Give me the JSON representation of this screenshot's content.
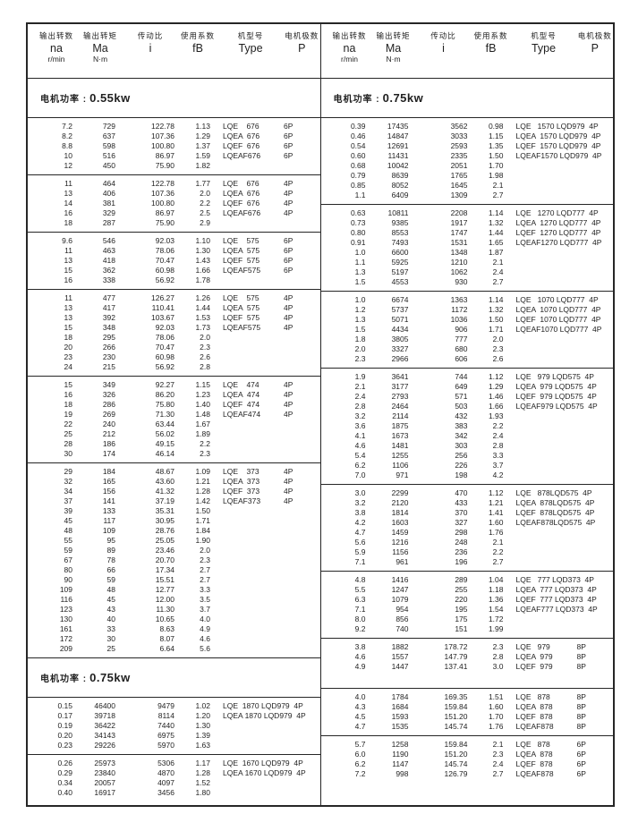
{
  "colors": {
    "ink": "#1f1f1f",
    "border": "#262626",
    "background": "#ffffff"
  },
  "power_label_prefix": "电机功率 :",
  "header": {
    "columns": [
      {
        "zh": "输出转数",
        "sym": "na",
        "unit": "r/min"
      },
      {
        "zh": "输出转矩",
        "sym": "Ma",
        "unit": "N·m"
      },
      {
        "zh": "传动比",
        "sym": "i",
        "unit": ""
      },
      {
        "zh": "使用系数",
        "sym": "fB",
        "unit": ""
      },
      {
        "zh": "机型号",
        "sym": "Type",
        "unit": ""
      },
      {
        "zh": "电机极数",
        "sym": "P",
        "unit": ""
      }
    ]
  },
  "left_column": {
    "sections": [
      {
        "type": "power",
        "value": "0.55kw"
      },
      {
        "type": "block",
        "poles": "6P",
        "poles_inline": false,
        "models": [
          "LQE    676",
          "LQEA  676",
          "LQEF  676",
          "LQEAF676"
        ],
        "rows": [
          [
            "7.2",
            "729",
            "122.78",
            "1.13"
          ],
          [
            "8.2",
            "637",
            "107.36",
            "1.29"
          ],
          [
            "8.8",
            "598",
            "100.80",
            "1.37"
          ],
          [
            "10",
            "516",
            "86.97",
            "1.59"
          ],
          [
            "12",
            "450",
            "75.90",
            "1.82"
          ]
        ]
      },
      {
        "type": "block",
        "poles": "4P",
        "poles_inline": false,
        "models": [
          "LQE    676",
          "LQEA  676",
          "LQEF  676",
          "LQEAF676"
        ],
        "rows": [
          [
            "11",
            "464",
            "122.78",
            "1.77"
          ],
          [
            "13",
            "406",
            "107.36",
            "2.0"
          ],
          [
            "14",
            "381",
            "100.80",
            "2.2"
          ],
          [
            "16",
            "329",
            "86.97",
            "2.5"
          ],
          [
            "18",
            "287",
            "75.90",
            "2.9"
          ]
        ]
      },
      {
        "type": "block",
        "poles": "6P",
        "poles_inline": false,
        "models": [
          "LQE    575",
          "LQEA  575",
          "LQEF  575",
          "LQEAF575"
        ],
        "rows": [
          [
            "9.6",
            "546",
            "92.03",
            "1.10"
          ],
          [
            "11",
            "463",
            "78.06",
            "1.30"
          ],
          [
            "13",
            "418",
            "70.47",
            "1.43"
          ],
          [
            "15",
            "362",
            "60.98",
            "1.66"
          ],
          [
            "16",
            "338",
            "56.92",
            "1.78"
          ]
        ]
      },
      {
        "type": "block",
        "poles": "4P",
        "poles_inline": false,
        "models": [
          "LQE    575",
          "LQEA  575",
          "LQEF  575",
          "LQEAF575"
        ],
        "rows": [
          [
            "11",
            "477",
            "126.27",
            "1.26"
          ],
          [
            "13",
            "417",
            "110.41",
            "1.44"
          ],
          [
            "13",
            "392",
            "103.67",
            "1.53"
          ],
          [
            "15",
            "348",
            "92.03",
            "1.73"
          ],
          [
            "18",
            "295",
            "78.06",
            "2.0"
          ],
          [
            "20",
            "266",
            "70.47",
            "2.3"
          ],
          [
            "23",
            "230",
            "60.98",
            "2.6"
          ],
          [
            "24",
            "215",
            "56.92",
            "2.8"
          ]
        ]
      },
      {
        "type": "block",
        "poles": "4P",
        "poles_inline": false,
        "models": [
          "LQE    474",
          "LQEA  474",
          "LQEF  474",
          "LQEAF474"
        ],
        "rows": [
          [
            "15",
            "349",
            "92.27",
            "1.15"
          ],
          [
            "16",
            "326",
            "86.20",
            "1.23"
          ],
          [
            "18",
            "286",
            "75.80",
            "1.40"
          ],
          [
            "19",
            "269",
            "71.30",
            "1.48"
          ],
          [
            "22",
            "240",
            "63.44",
            "1.67"
          ],
          [
            "25",
            "212",
            "56.02",
            "1.89"
          ],
          [
            "28",
            "186",
            "49.15",
            "2.2"
          ],
          [
            "30",
            "174",
            "46.14",
            "2.3"
          ]
        ]
      },
      {
        "type": "block",
        "poles": "4P",
        "poles_inline": false,
        "models": [
          "LQE    373",
          "LQEA  373",
          "LQEF  373",
          "LQEAF373"
        ],
        "rows": [
          [
            "29",
            "184",
            "48.67",
            "1.09"
          ],
          [
            "32",
            "165",
            "43.60",
            "1.21"
          ],
          [
            "34",
            "156",
            "41.32",
            "1.28"
          ],
          [
            "37",
            "141",
            "37.19",
            "1.42"
          ],
          [
            "39",
            "133",
            "35.31",
            "1.50"
          ],
          [
            "45",
            "117",
            "30.95",
            "1.71"
          ],
          [
            "48",
            "109",
            "28.76",
            "1.84"
          ],
          [
            "55",
            "95",
            "25.05",
            "1.90"
          ],
          [
            "59",
            "89",
            "23.46",
            "2.0"
          ],
          [
            "67",
            "78",
            "20.70",
            "2.3"
          ],
          [
            "80",
            "66",
            "17.34",
            "2.7"
          ],
          [
            "90",
            "59",
            "15.51",
            "2.7"
          ],
          [
            "109",
            "48",
            "12.77",
            "3.3"
          ],
          [
            "116",
            "45",
            "12.00",
            "3.5"
          ],
          [
            "123",
            "43",
            "11.30",
            "3.7"
          ],
          [
            "130",
            "40",
            "10.65",
            "4.0"
          ],
          [
            "161",
            "33",
            "8.63",
            "4.9"
          ],
          [
            "172",
            "30",
            "8.07",
            "4.6"
          ],
          [
            "209",
            "25",
            "6.64",
            "5.6"
          ]
        ]
      },
      {
        "type": "power",
        "value": "0.75kw"
      },
      {
        "type": "block",
        "poles": "4P",
        "poles_inline": true,
        "models": [
          "LQE  1870 LQD979",
          "LQEA 1870 LQD979"
        ],
        "rows": [
          [
            "0.15",
            "46400",
            "9479",
            "1.02"
          ],
          [
            "0.17",
            "39718",
            "8114",
            "1.20"
          ],
          [
            "0.19",
            "36422",
            "7440",
            "1.30"
          ],
          [
            "0.20",
            "34143",
            "6975",
            "1.39"
          ],
          [
            "0.23",
            "29226",
            "5970",
            "1.63"
          ]
        ]
      },
      {
        "type": "block",
        "poles": "4P",
        "poles_inline": true,
        "models": [
          "LQE  1670 LQD979",
          "LQEA 1670 LQD979"
        ],
        "rows": [
          [
            "0.26",
            "25973",
            "5306",
            "1.17"
          ],
          [
            "0.29",
            "23840",
            "4870",
            "1.28"
          ],
          [
            "0.34",
            "20057",
            "4097",
            "1.52"
          ],
          [
            "0.40",
            "16917",
            "3456",
            "1.80"
          ]
        ]
      }
    ]
  },
  "right_column": {
    "sections": [
      {
        "type": "power",
        "value": "0.75kw"
      },
      {
        "type": "block",
        "poles": "4P",
        "poles_inline": true,
        "models": [
          "LQE   1570 LQD979",
          "LQEA  1570 LQD979",
          "LQEF  1570 LQD979",
          "LQEAF1570 LQD979"
        ],
        "rows": [
          [
            "0.39",
            "17435",
            "3562",
            "0.98"
          ],
          [
            "0.46",
            "14847",
            "3033",
            "1.15"
          ],
          [
            "0.54",
            "12691",
            "2593",
            "1.35"
          ],
          [
            "0.60",
            "11431",
            "2335",
            "1.50"
          ],
          [
            "0.68",
            "10042",
            "2051",
            "1.70"
          ],
          [
            "0.79",
            "8639",
            "1765",
            "1.98"
          ],
          [
            "0.85",
            "8052",
            "1645",
            "2.1"
          ],
          [
            "1.1",
            "6409",
            "1309",
            "2.7"
          ]
        ]
      },
      {
        "type": "block",
        "poles": "4P",
        "poles_inline": true,
        "models": [
          "LQE   1270 LQD777",
          "LQEA  1270 LQD777",
          "LQEF  1270 LQD777",
          "LQEAF1270 LQD777"
        ],
        "rows": [
          [
            "0.63",
            "10811",
            "2208",
            "1.14"
          ],
          [
            "0.73",
            "9385",
            "1917",
            "1.32"
          ],
          [
            "0.80",
            "8553",
            "1747",
            "1.44"
          ],
          [
            "0.91",
            "7493",
            "1531",
            "1.65"
          ],
          [
            "1.0",
            "6600",
            "1348",
            "1.87"
          ],
          [
            "1.1",
            "5925",
            "1210",
            "2.1"
          ],
          [
            "1.3",
            "5197",
            "1062",
            "2.4"
          ],
          [
            "1.5",
            "4553",
            "930",
            "2.7"
          ]
        ]
      },
      {
        "type": "block",
        "poles": "4P",
        "poles_inline": true,
        "models": [
          "LQE   1070 LQD777",
          "LQEA  1070 LQD777",
          "LQEF  1070 LQD777",
          "LQEAF1070 LQD777"
        ],
        "rows": [
          [
            "1.0",
            "6674",
            "1363",
            "1.14"
          ],
          [
            "1.2",
            "5737",
            "1172",
            "1.32"
          ],
          [
            "1.3",
            "5071",
            "1036",
            "1.50"
          ],
          [
            "1.5",
            "4434",
            "906",
            "1.71"
          ],
          [
            "1.8",
            "3805",
            "777",
            "2.0"
          ],
          [
            "2.0",
            "3327",
            "680",
            "2.3"
          ],
          [
            "2.3",
            "2966",
            "606",
            "2.6"
          ]
        ]
      },
      {
        "type": "block",
        "poles": "4P",
        "poles_inline": true,
        "models": [
          "LQE   979 LQD575",
          "LQEA  979 LQD575",
          "LQEF  979 LQD575",
          "LQEAF979 LQD575"
        ],
        "rows": [
          [
            "1.9",
            "3641",
            "744",
            "1.12"
          ],
          [
            "2.1",
            "3177",
            "649",
            "1.29"
          ],
          [
            "2.4",
            "2793",
            "571",
            "1.46"
          ],
          [
            "2.8",
            "2464",
            "503",
            "1.66"
          ],
          [
            "3.2",
            "2114",
            "432",
            "1.93"
          ],
          [
            "3.6",
            "1875",
            "383",
            "2.2"
          ],
          [
            "4.1",
            "1673",
            "342",
            "2.4"
          ],
          [
            "4.6",
            "1481",
            "303",
            "2.8"
          ],
          [
            "5.4",
            "1255",
            "256",
            "3.3"
          ],
          [
            "6.2",
            "1106",
            "226",
            "3.7"
          ],
          [
            "7.0",
            "971",
            "198",
            "4.2"
          ]
        ]
      },
      {
        "type": "block",
        "poles": "4P",
        "poles_inline": true,
        "models": [
          "LQE   878LQD575",
          "LQEA  878LQD575",
          "LQEF  878LQD575",
          "LQEAF878LQD575"
        ],
        "rows": [
          [
            "3.0",
            "2299",
            "470",
            "1.12"
          ],
          [
            "3.2",
            "2120",
            "433",
            "1.21"
          ],
          [
            "3.8",
            "1814",
            "370",
            "1.41"
          ],
          [
            "4.2",
            "1603",
            "327",
            "1.60"
          ],
          [
            "4.7",
            "1459",
            "298",
            "1.76"
          ],
          [
            "5.6",
            "1216",
            "248",
            "2.1"
          ],
          [
            "5.9",
            "1156",
            "236",
            "2.2"
          ],
          [
            "7.1",
            "961",
            "196",
            "2.7"
          ]
        ]
      },
      {
        "type": "block",
        "poles": "4P",
        "poles_inline": true,
        "models": [
          "LQE   777 LQD373",
          "LQEA  777 LQD373",
          "LQEF  777 LQD373",
          "LQEAF777 LQD373"
        ],
        "rows": [
          [
            "4.8",
            "1416",
            "289",
            "1.04"
          ],
          [
            "5.5",
            "1247",
            "255",
            "1.18"
          ],
          [
            "6.3",
            "1079",
            "220",
            "1.36"
          ],
          [
            "7.1",
            "954",
            "195",
            "1.54"
          ],
          [
            "8.0",
            "856",
            "175",
            "1.72"
          ],
          [
            "9.2",
            "740",
            "151",
            "1.99"
          ]
        ]
      },
      {
        "type": "block",
        "poles": "8P",
        "poles_inline": false,
        "extra_space": true,
        "models": [
          "LQE   979",
          "LQEA  979",
          "LQEF  979"
        ],
        "rows": [
          [
            "3.8",
            "1882",
            "178.72",
            "2.3"
          ],
          [
            "4.6",
            "1557",
            "147.79",
            "2.8"
          ],
          [
            "4.9",
            "1447",
            "137.41",
            "3.0"
          ]
        ]
      },
      {
        "type": "block",
        "poles": "8P",
        "poles_inline": false,
        "models": [
          "LQE   878",
          "LQEA  878",
          "LQEF  878",
          "LQEAF878"
        ],
        "rows": [
          [
            "4.0",
            "1784",
            "169.35",
            "1.51"
          ],
          [
            "4.3",
            "1684",
            "159.84",
            "1.60"
          ],
          [
            "4.5",
            "1593",
            "151.20",
            "1.70"
          ],
          [
            "4.7",
            "1535",
            "145.74",
            "1.76"
          ]
        ]
      },
      {
        "type": "block",
        "poles": "6P",
        "poles_inline": false,
        "models": [
          "LQE   878",
          "LQEA  878",
          "LQEF  878",
          "LQEAF878"
        ],
        "rows": [
          [
            "5.7",
            "1258",
            "159.84",
            "2.1"
          ],
          [
            "6.0",
            "1190",
            "151.20",
            "2.3"
          ],
          [
            "6.2",
            "1147",
            "145.74",
            "2.4"
          ],
          [
            "7.2",
            "998",
            "126.79",
            "2.7"
          ]
        ]
      }
    ]
  }
}
